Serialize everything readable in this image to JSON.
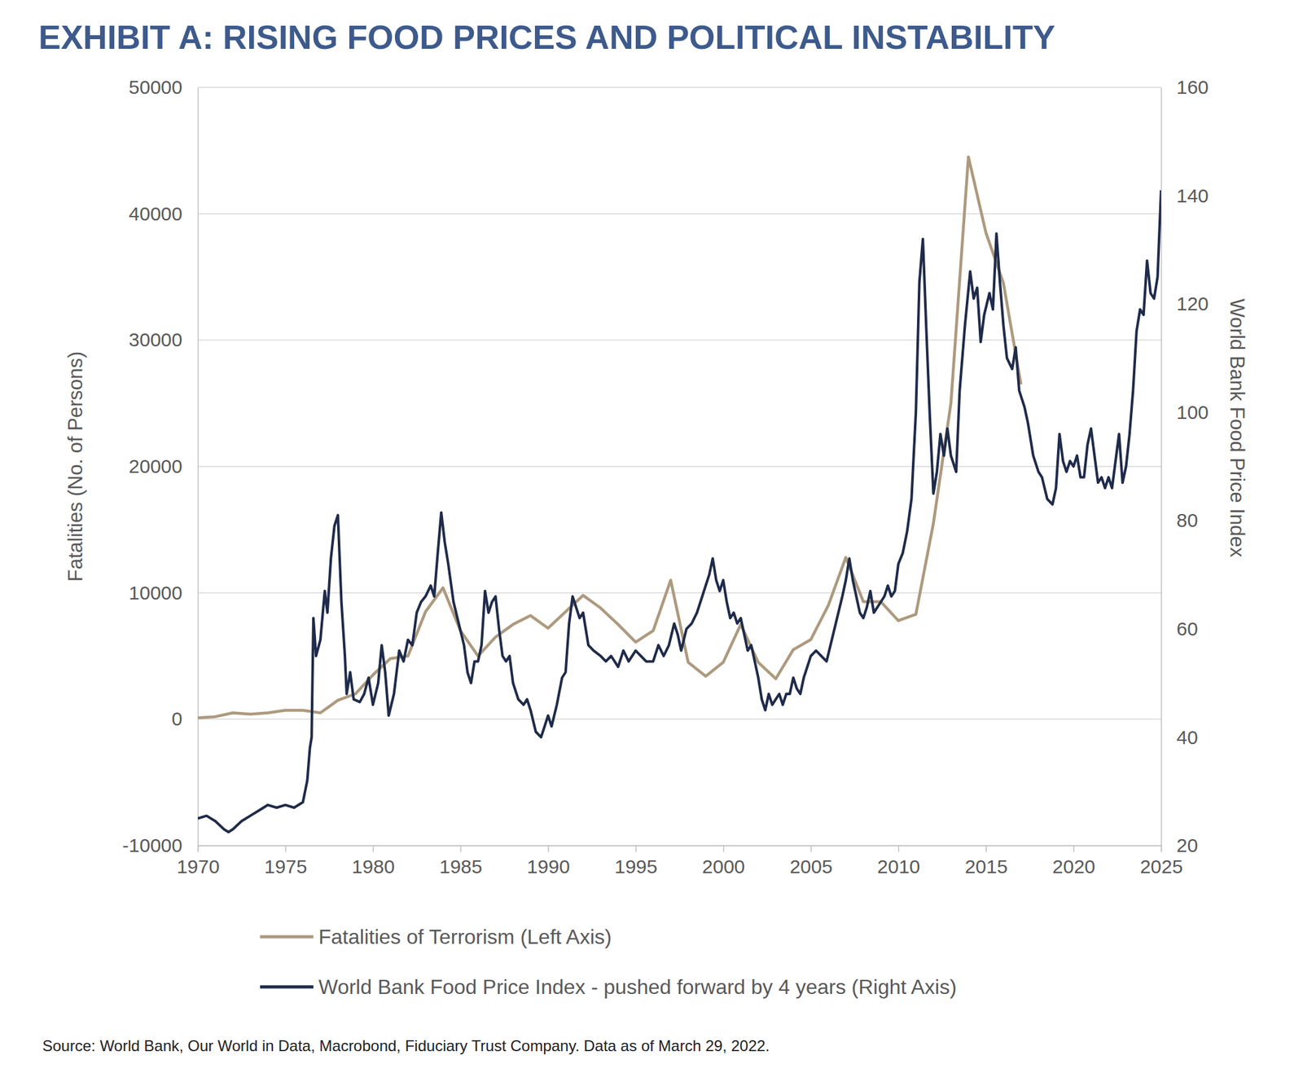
{
  "chart_data": {
    "type": "line",
    "title": "EXHIBIT A: RISING FOOD PRICES AND POLITICAL INSTABILITY",
    "y_label": "Fatalities (No. of Persons)",
    "y2_label": "World Bank Food Price Index",
    "source": "Source: World Bank, Our World in Data, Macrobond, Fiduciary Trust Company. Data as of March 29, 2022.",
    "xlim": [
      1970,
      2025
    ],
    "xticks": [
      1970,
      1975,
      1980,
      1985,
      1990,
      1995,
      2000,
      2005,
      2010,
      2015,
      2020,
      2025
    ],
    "ylim": [
      -10000,
      50000
    ],
    "yticks": [
      -10000,
      0,
      10000,
      20000,
      30000,
      40000,
      50000
    ],
    "y2lim": [
      20,
      160
    ],
    "y2ticks": [
      20,
      40,
      60,
      80,
      100,
      120,
      140,
      160
    ],
    "grid": true,
    "legend": "bottom",
    "series": [
      {
        "name": "Fatalities of Terrorism (Left Axis)",
        "color": "#ad9a7e",
        "axis": "y",
        "x": [
          1970,
          1971,
          1972,
          1973,
          1974,
          1975,
          1976,
          1977,
          1978,
          1979,
          1980,
          1981,
          1982,
          1983,
          1984,
          1985,
          1986,
          1987,
          1988,
          1989,
          1990,
          1991,
          1992,
          1993,
          1994,
          1995,
          1996,
          1997,
          1998,
          1999,
          2000,
          2001,
          2002,
          2003,
          2004,
          2005,
          2006,
          2007,
          2008,
          2009,
          2010,
          2011,
          2012,
          2013,
          2014,
          2015,
          2016,
          2017
        ],
        "values": [
          100,
          200,
          500,
          400,
          500,
          700,
          700,
          500,
          1500,
          2000,
          3500,
          4800,
          5000,
          8500,
          10400,
          7000,
          5000,
          6500,
          7500,
          8200,
          7200,
          8500,
          9800,
          8800,
          7500,
          6100,
          7000,
          11000,
          4500,
          3400,
          4500,
          7500,
          4500,
          3200,
          5500,
          6300,
          9000,
          12800,
          9300,
          9300,
          7800,
          8300,
          15500,
          25000,
          44500,
          38500,
          34500,
          26500
        ]
      },
      {
        "name": "World Bank Food Price Index - pushed forward by 4 years (Right Axis)",
        "color": "#1f2b4a",
        "axis": "y2",
        "x": [
          1970,
          1970.5,
          1971,
          1971.5,
          1971.75,
          1972,
          1972.5,
          1973,
          1973.5,
          1974,
          1974.5,
          1975,
          1975.5,
          1976,
          1976.25,
          1976.4,
          1976.5,
          1976.6,
          1976.75,
          1977,
          1977.25,
          1977.4,
          1977.6,
          1977.8,
          1978,
          1978.2,
          1978.4,
          1978.5,
          1978.7,
          1978.9,
          1979.25,
          1979.5,
          1979.75,
          1980,
          1980.3,
          1980.5,
          1980.7,
          1980.9,
          1981.2,
          1981.5,
          1981.75,
          1982,
          1982.25,
          1982.5,
          1982.75,
          1983,
          1983.3,
          1983.5,
          1983.7,
          1983.9,
          1984.1,
          1984.3,
          1984.6,
          1984.9,
          1985.2,
          1985.4,
          1985.6,
          1985.8,
          1986,
          1986.2,
          1986.4,
          1986.6,
          1986.8,
          1987,
          1987.2,
          1987.4,
          1987.6,
          1987.8,
          1988,
          1988.3,
          1988.6,
          1988.8,
          1989,
          1989.3,
          1989.6,
          1989.8,
          1990,
          1990.2,
          1990.5,
          1990.8,
          1991,
          1991.2,
          1991.4,
          1991.6,
          1991.8,
          1992,
          1992.3,
          1992.6,
          1993,
          1993.3,
          1993.6,
          1994,
          1994.3,
          1994.6,
          1995,
          1995.3,
          1995.6,
          1996,
          1996.3,
          1996.6,
          1996.9,
          1997.2,
          1997.4,
          1997.6,
          1997.9,
          1998.2,
          1998.5,
          1998.8,
          1999,
          1999.2,
          1999.4,
          1999.6,
          1999.8,
          2000,
          2000.2,
          2000.4,
          2000.6,
          2000.8,
          2001,
          2001.2,
          2001.4,
          2001.6,
          2001.8,
          2002,
          2002.2,
          2002.4,
          2002.6,
          2002.8,
          2003,
          2003.2,
          2003.4,
          2003.6,
          2003.8,
          2004,
          2004.2,
          2004.4,
          2004.6,
          2004.8,
          2005,
          2005.3,
          2005.6,
          2005.9,
          2006.2,
          2006.5,
          2006.8,
          2007,
          2007.2,
          2007.4,
          2007.6,
          2007.8,
          2008,
          2008.2,
          2008.4,
          2008.6,
          2008.8,
          2009,
          2009.2,
          2009.4,
          2009.6,
          2009.8,
          2010,
          2010.25,
          2010.5,
          2010.75,
          2011,
          2011.2,
          2011.4,
          2011.6,
          2011.8,
          2012,
          2012.2,
          2012.4,
          2012.6,
          2012.8,
          2013,
          2013.3,
          2013.5,
          2013.8,
          2014.1,
          2014.3,
          2014.5,
          2014.7,
          2014.9,
          2015.2,
          2015.4,
          2015.6,
          2015.8,
          2016,
          2016.2,
          2016.5,
          2016.7,
          2016.9,
          2017.2,
          2017.4,
          2017.7,
          2018,
          2018.2,
          2018.5,
          2018.8,
          2019,
          2019.2,
          2019.4,
          2019.6,
          2019.8,
          2020,
          2020.2,
          2020.4,
          2020.6,
          2020.8,
          2021,
          2021.2,
          2021.4,
          2021.6,
          2021.8,
          2022,
          2022.2,
          2022.4,
          2022.6,
          2022.8,
          2023,
          2023.2,
          2023.4,
          2023.6,
          2023.8,
          2024,
          2024.2,
          2024.4,
          2024.6,
          2024.8,
          2025
        ],
        "values": [
          25,
          25.5,
          24.5,
          23,
          22.5,
          23,
          24.5,
          25.5,
          26.5,
          27.5,
          27,
          27.5,
          27,
          28,
          32,
          38,
          40,
          62,
          55,
          58,
          67,
          63,
          73,
          79,
          81,
          65,
          55,
          48,
          52,
          47,
          46.5,
          48,
          51,
          46,
          50,
          57,
          52,
          44,
          48,
          56,
          54,
          58,
          57,
          63,
          65,
          66,
          68,
          66,
          74,
          81.5,
          76,
          72,
          65,
          61,
          57,
          52,
          50,
          54,
          54,
          57,
          67,
          63,
          65,
          66,
          60,
          55,
          54,
          55,
          50,
          47,
          46,
          47,
          45,
          41,
          40,
          42,
          44,
          42,
          46,
          51,
          52,
          61,
          66,
          64,
          62,
          63,
          57,
          56,
          55,
          54,
          55,
          53,
          56,
          54,
          56,
          55,
          54,
          54,
          57,
          55,
          57,
          61,
          59,
          56,
          60,
          61,
          63,
          66,
          68,
          70,
          73,
          69,
          67,
          69,
          65,
          62,
          63,
          61,
          62,
          59,
          56,
          57,
          54,
          51,
          47,
          45,
          48,
          46,
          47,
          48,
          46,
          48,
          48,
          51,
          49,
          48,
          51,
          53,
          55,
          56,
          55,
          54,
          58,
          62,
          66,
          69,
          73,
          69,
          66,
          63,
          62,
          64,
          67,
          63,
          64,
          65,
          66,
          68,
          66,
          67,
          72,
          74,
          78,
          84,
          100,
          124,
          132,
          115,
          99,
          85,
          89,
          96,
          92,
          97,
          92,
          89,
          104,
          116,
          126,
          121,
          123,
          113,
          118,
          122,
          119,
          133,
          124,
          116,
          110,
          108,
          112,
          104,
          101,
          98,
          92,
          89,
          88,
          84,
          83,
          86,
          96,
          91,
          89,
          91,
          90,
          92,
          88,
          88,
          94,
          97,
          92,
          87,
          88,
          86,
          88,
          86,
          91,
          96,
          87,
          90,
          96,
          104,
          115,
          119,
          118,
          128,
          122,
          121,
          125,
          141
        ]
      }
    ]
  }
}
